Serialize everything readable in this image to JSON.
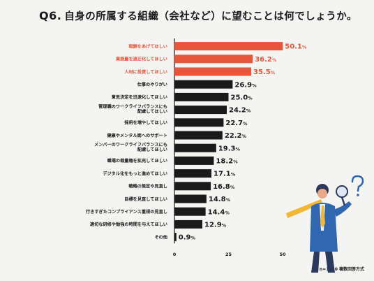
{
  "title": {
    "qnum": "Q6.",
    "text": "自身の所属する組織（会社など）に望むことは何でしょうか。"
  },
  "footnote": "n=1210 複数回答方式",
  "chart_data": {
    "type": "bar",
    "orientation": "horizontal",
    "unit": "%",
    "categories": [
      "報酬をあげてほしい",
      "業務量を適正化してほしい",
      "人材に投資してほしい",
      "仕事のやりがい",
      "意思決定を迅速化してほしい",
      "管理職のワークライフバランスにも\n配慮してほしい",
      "採用を増やしてほしい",
      "健康やメンタル面へのサポート",
      "メンバーのワークライフバランスにも\n配慮してほしい",
      "職場の裁量権を拡充してほしい",
      "デジタル化をもっと進めてほしい",
      "戦略の策定や見直し",
      "目標を見直してほしい",
      "行きすぎたコンプライアンス重視の見直し",
      "適切な研修や勉強の時間を与えてほしい",
      "その他"
    ],
    "values": [
      50.1,
      36.2,
      35.5,
      26.9,
      25.0,
      24.2,
      22.7,
      22.2,
      19.3,
      18.2,
      17.1,
      16.8,
      14.8,
      14.4,
      12.9,
      0.9
    ],
    "value_labels": [
      "50.1",
      "36.2",
      "35.5",
      "26.9",
      "25.0",
      "24.2",
      "22.7",
      "22.2",
      "19.3",
      "18.2",
      "17.1",
      "16.8",
      "14.8",
      "14.4",
      "12.9",
      "0.9"
    ],
    "highlight_count": 3,
    "xlim": [
      0,
      50
    ],
    "xticks": [
      "0",
      "25",
      "50"
    ],
    "colors": {
      "highlight": "#e8553a",
      "normal": "#1a1a1a",
      "highlight_text": "#e8553a",
      "normal_text": "#1a1a1a"
    }
  }
}
